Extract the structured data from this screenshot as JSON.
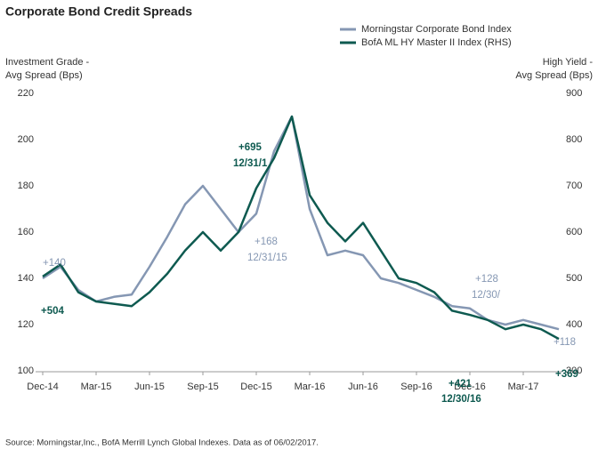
{
  "chart_data": {
    "type": "line",
    "title": "Corporate Bond Credit Spreads",
    "ylabel": [
      "Investment Grade -",
      "Avg Spread (Bps)"
    ],
    "y2label": [
      "High Yield -",
      "Avg Spread (Bps)"
    ],
    "source": "Source: Morningstar,Inc., BofA Merrill Lynch Global Indexes. Data as of 06/02/2017.",
    "categories": [
      "Dec-14",
      null,
      null,
      "Mar-15",
      null,
      null,
      "Jun-15",
      null,
      null,
      "Sep-15",
      null,
      null,
      "Dec-15",
      null,
      null,
      "Mar-16",
      null,
      null,
      "Jun-16",
      null,
      null,
      "Sep-16",
      null,
      null,
      "Dec-16",
      null,
      null,
      "Mar-17",
      null,
      null
    ],
    "series": [
      {
        "name": "Morningstar Corporate Bond Index",
        "color": "#8597b3",
        "axis": "y",
        "values": [
          140,
          145,
          135,
          130,
          132,
          133,
          145,
          158,
          172,
          180,
          170,
          160,
          168,
          195,
          210,
          170,
          150,
          152,
          150,
          140,
          138,
          135,
          132,
          128,
          127,
          122,
          120,
          122,
          120,
          118
        ]
      },
      {
        "name": "BofA ML HY Master II Index (RHS)",
        "color": "#0e5a50",
        "axis": "y2",
        "values": [
          504,
          530,
          470,
          450,
          445,
          440,
          470,
          510,
          560,
          600,
          560,
          600,
          695,
          760,
          850,
          680,
          620,
          580,
          620,
          560,
          500,
          490,
          470,
          430,
          421,
          410,
          390,
          400,
          390,
          369
        ]
      }
    ],
    "ylim": [
      100,
      220
    ],
    "yticks": [
      100,
      120,
      140,
      160,
      180,
      200,
      220
    ],
    "y2lim": [
      300,
      900
    ],
    "y2ticks": [
      300,
      400,
      500,
      600,
      700,
      800,
      900
    ],
    "annotations": [
      {
        "text": "+140",
        "series": 0
      },
      {
        "text": "+504",
        "series": 1
      },
      {
        "text": "+695",
        "series": 1
      },
      {
        "text": "12/31/1",
        "series": 1
      },
      {
        "text": "+168",
        "series": 0
      },
      {
        "text": "12/31/15",
        "series": 0
      },
      {
        "text": "+128",
        "series": 0
      },
      {
        "text": "12/30/",
        "series": 0
      },
      {
        "text": "+421",
        "series": 1
      },
      {
        "text": "12/30/16",
        "series": 1
      },
      {
        "text": "+118",
        "series": 0
      },
      {
        "text": "+369",
        "series": 1
      }
    ]
  }
}
